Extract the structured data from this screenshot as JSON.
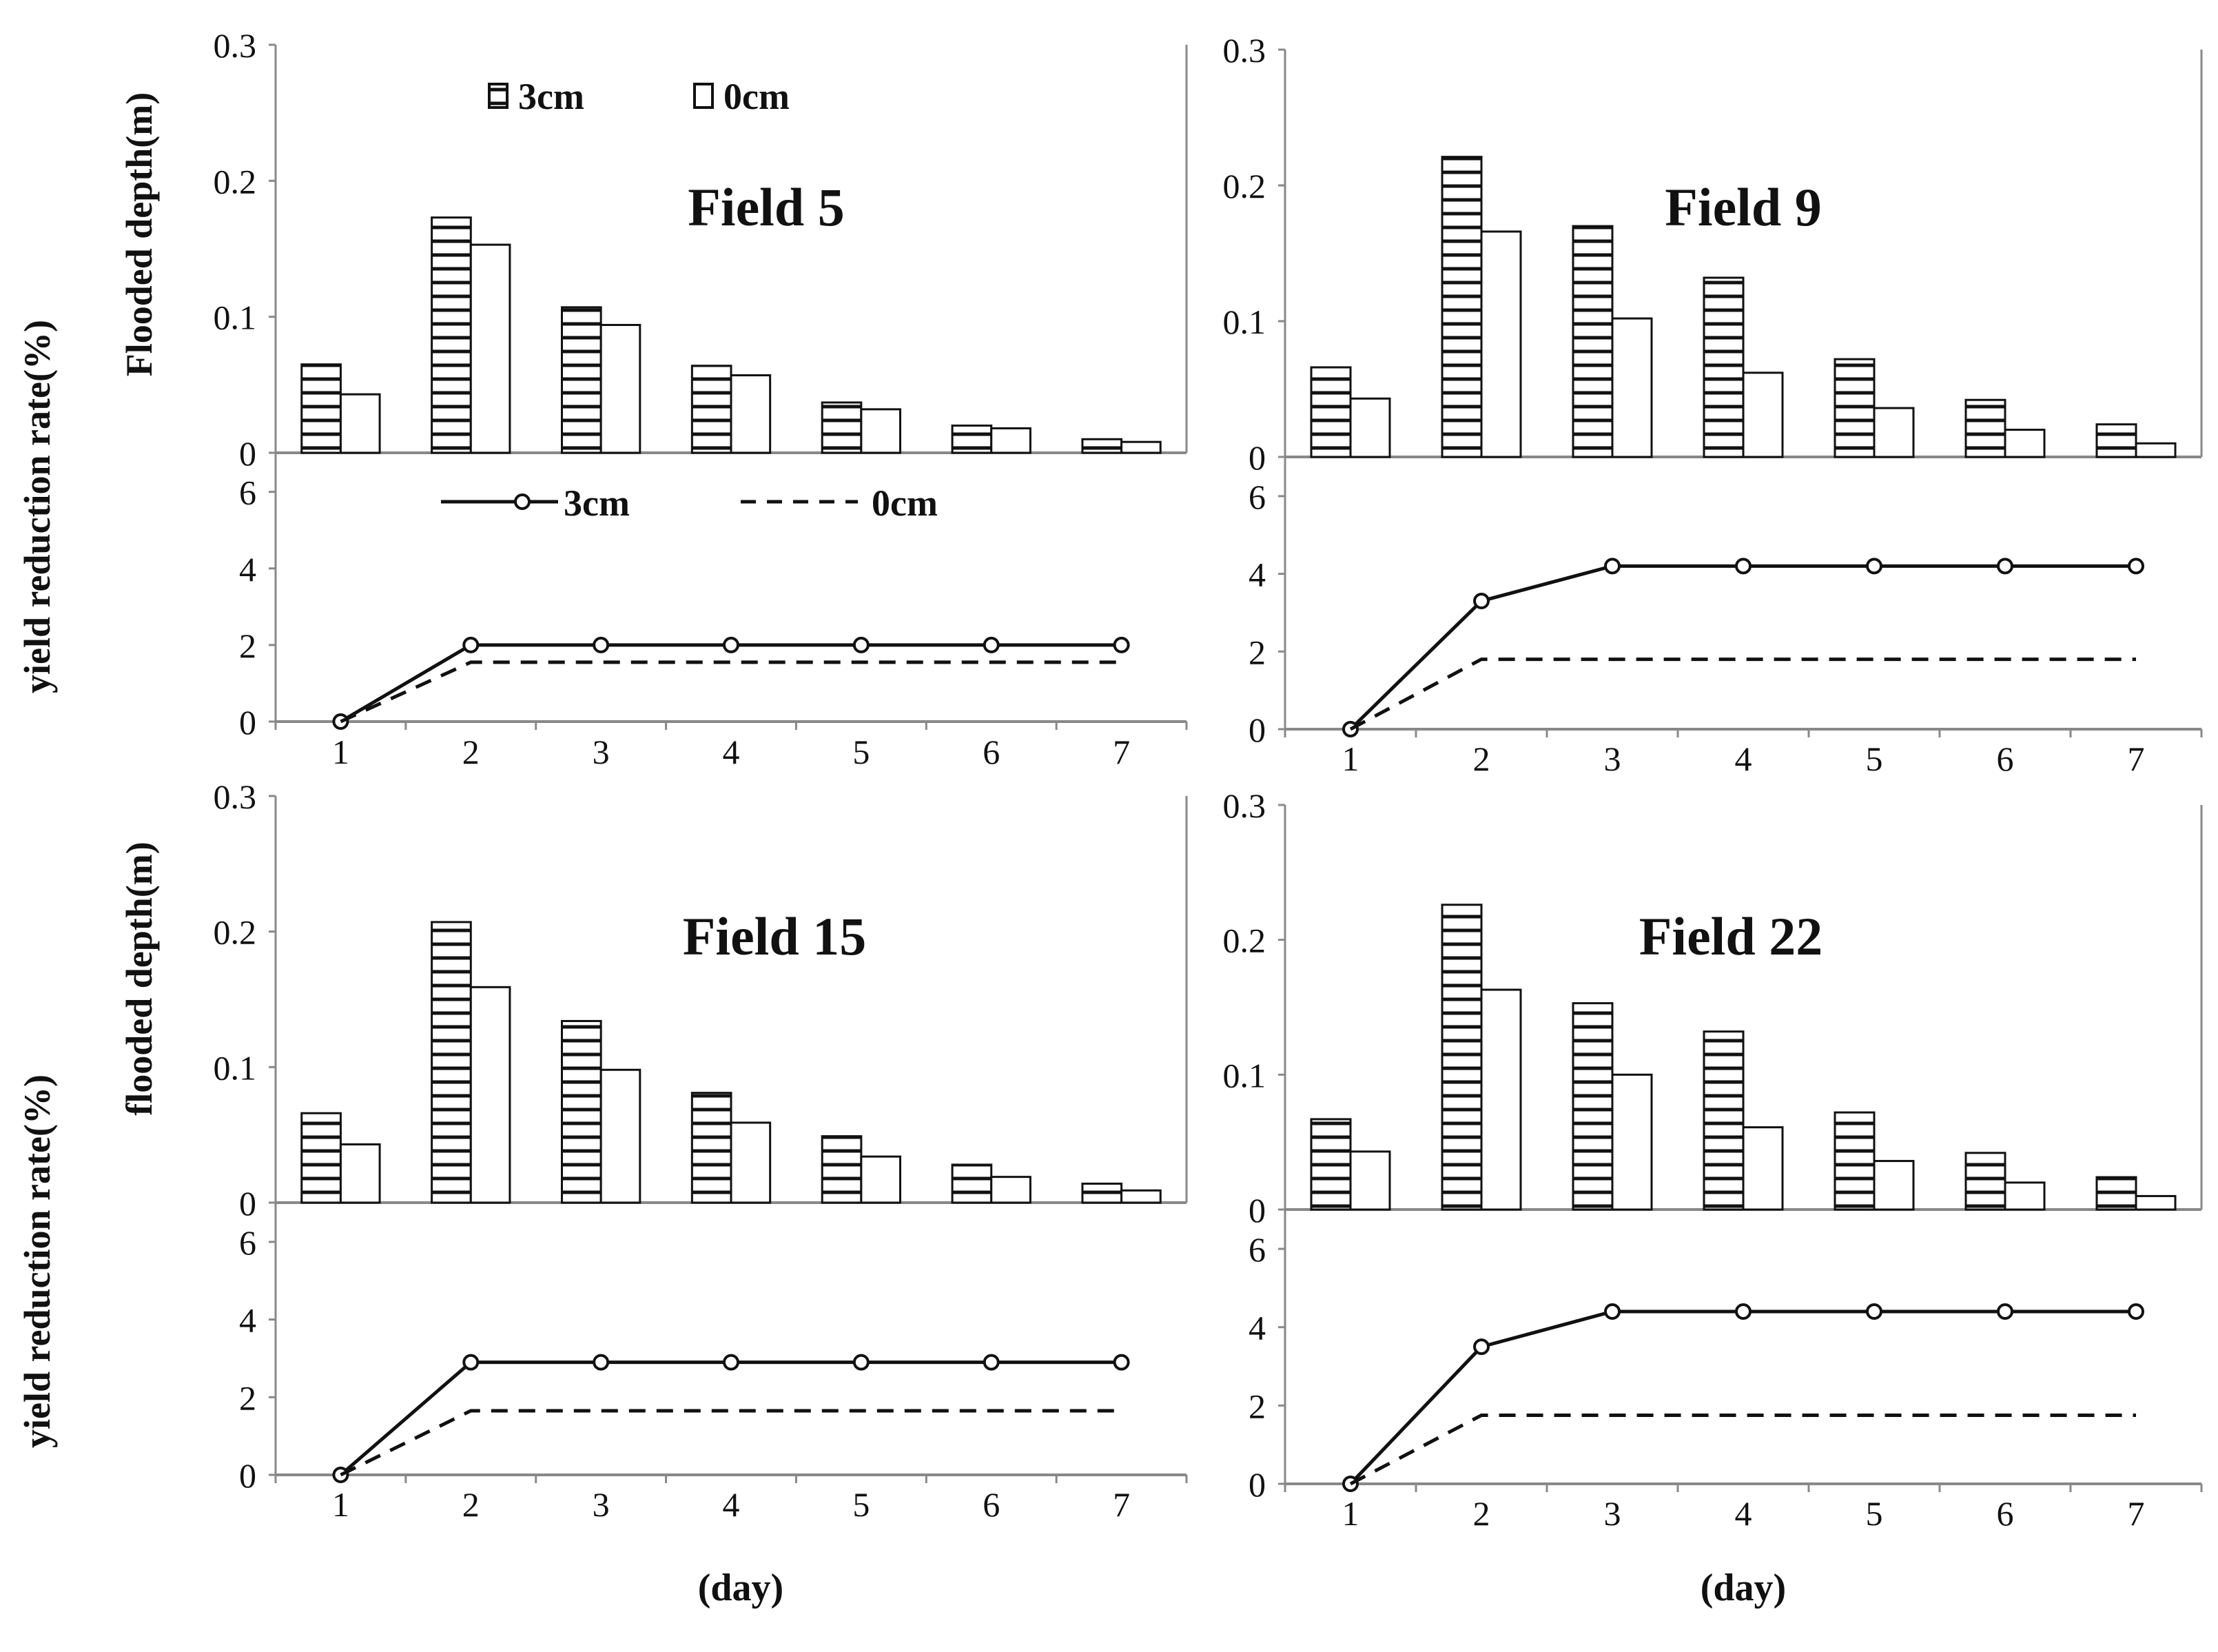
{
  "figure": {
    "y_labels": {
      "top_row_bar": "Flooded depth(m)",
      "bottom_row_bar": "flooded depth(m)",
      "line": "yield reduction rate(%)"
    },
    "x_label": "(day)"
  },
  "legend": {
    "bar_3cm": "3cm",
    "bar_0cm": "0cm",
    "line_3cm": "3cm",
    "line_0cm": "0cm"
  },
  "colors": {
    "axis": "#888888",
    "ink": "#111111",
    "bar_fill": "#ffffff"
  },
  "chart_data": [
    {
      "type": "bar",
      "title": "Field 5",
      "xlabel": "",
      "ylabel": "Flooded depth(m)",
      "categories": [
        "1",
        "2",
        "3",
        "4",
        "5",
        "6",
        "7"
      ],
      "ylim": [
        0,
        0.3
      ],
      "yticks": [
        "0",
        "0.1",
        "0.2",
        "0.3"
      ],
      "series": [
        {
          "name": "3cm",
          "pattern": "hatched",
          "values": [
            0.065,
            0.173,
            0.107,
            0.064,
            0.037,
            0.02,
            0.01
          ]
        },
        {
          "name": "0cm",
          "pattern": "empty",
          "values": [
            0.043,
            0.153,
            0.094,
            0.057,
            0.032,
            0.018,
            0.008
          ]
        }
      ]
    },
    {
      "type": "line",
      "title": "",
      "xlabel": "",
      "ylabel": "yield reduction rate(%)",
      "categories": [
        "1",
        "2",
        "3",
        "4",
        "5",
        "6",
        "7"
      ],
      "ylim": [
        0,
        6.3
      ],
      "yticks": [
        "0",
        "2",
        "4",
        "6"
      ],
      "series": [
        {
          "name": "3cm",
          "style": "solid-circle",
          "values": [
            0,
            2.0,
            2.0,
            2.0,
            2.0,
            2.0,
            2.0
          ]
        },
        {
          "name": "0cm",
          "style": "dashed",
          "values": [
            0,
            1.55,
            1.55,
            1.55,
            1.55,
            1.55,
            1.55
          ]
        }
      ]
    },
    {
      "type": "bar",
      "title": "Field 9",
      "xlabel": "",
      "ylabel": "",
      "categories": [
        "1",
        "2",
        "3",
        "4",
        "5",
        "6",
        "7"
      ],
      "ylim": [
        0,
        0.3
      ],
      "yticks": [
        "0",
        "0.1",
        "0.2",
        "0.3"
      ],
      "series": [
        {
          "name": "3cm",
          "pattern": "hatched",
          "values": [
            0.066,
            0.221,
            0.17,
            0.132,
            0.072,
            0.042,
            0.024
          ]
        },
        {
          "name": "0cm",
          "pattern": "empty",
          "values": [
            0.043,
            0.166,
            0.102,
            0.062,
            0.036,
            0.02,
            0.01
          ]
        }
      ]
    },
    {
      "type": "line",
      "title": "",
      "xlabel": "",
      "ylabel": "",
      "categories": [
        "1",
        "2",
        "3",
        "4",
        "5",
        "6",
        "7"
      ],
      "ylim": [
        0,
        6.3
      ],
      "yticks": [
        "0",
        "2",
        "4",
        "6"
      ],
      "series": [
        {
          "name": "3cm",
          "style": "solid-circle",
          "values": [
            0,
            3.3,
            4.2,
            4.2,
            4.2,
            4.2,
            4.2
          ]
        },
        {
          "name": "0cm",
          "style": "dashed",
          "values": [
            0,
            1.8,
            1.8,
            1.8,
            1.8,
            1.8,
            1.8
          ]
        }
      ]
    },
    {
      "type": "bar",
      "title": "Field 15",
      "xlabel": "",
      "ylabel": "flooded depth(m)",
      "categories": [
        "1",
        "2",
        "3",
        "4",
        "5",
        "6",
        "7"
      ],
      "ylim": [
        0,
        0.3
      ],
      "yticks": [
        "0",
        "0.1",
        "0.2",
        "0.3"
      ],
      "series": [
        {
          "name": "3cm",
          "pattern": "hatched",
          "values": [
            0.066,
            0.207,
            0.134,
            0.081,
            0.049,
            0.028,
            0.014
          ]
        },
        {
          "name": "0cm",
          "pattern": "empty",
          "values": [
            0.043,
            0.159,
            0.098,
            0.059,
            0.034,
            0.019,
            0.009
          ]
        }
      ]
    },
    {
      "type": "line",
      "title": "",
      "xlabel": "(day)",
      "ylabel": "yield reduction rate(%)",
      "categories": [
        "1",
        "2",
        "3",
        "4",
        "5",
        "6",
        "7"
      ],
      "ylim": [
        0,
        6.3
      ],
      "yticks": [
        "0",
        "2",
        "4",
        "6"
      ],
      "series": [
        {
          "name": "3cm",
          "style": "solid-circle",
          "values": [
            0,
            2.9,
            2.9,
            2.9,
            2.9,
            2.9,
            2.9
          ]
        },
        {
          "name": "0cm",
          "style": "dashed",
          "values": [
            0,
            1.65,
            1.65,
            1.65,
            1.65,
            1.65,
            1.65
          ]
        }
      ]
    },
    {
      "type": "bar",
      "title": "Field 22",
      "xlabel": "",
      "ylabel": "",
      "categories": [
        "1",
        "2",
        "3",
        "4",
        "5",
        "6",
        "7"
      ],
      "ylim": [
        0,
        0.3
      ],
      "yticks": [
        "0",
        "0.1",
        "0.2",
        "0.3"
      ],
      "series": [
        {
          "name": "3cm",
          "pattern": "hatched",
          "values": [
            0.067,
            0.226,
            0.153,
            0.132,
            0.072,
            0.042,
            0.024
          ]
        },
        {
          "name": "0cm",
          "pattern": "empty",
          "values": [
            0.043,
            0.163,
            0.1,
            0.061,
            0.036,
            0.02,
            0.01
          ]
        }
      ]
    },
    {
      "type": "line",
      "title": "",
      "xlabel": "(day)",
      "ylabel": "",
      "categories": [
        "1",
        "2",
        "3",
        "4",
        "5",
        "6",
        "7"
      ],
      "ylim": [
        0,
        6.3
      ],
      "yticks": [
        "0",
        "2",
        "4",
        "6"
      ],
      "series": [
        {
          "name": "3cm",
          "style": "solid-circle",
          "values": [
            0,
            3.5,
            4.4,
            4.4,
            4.4,
            4.4,
            4.4
          ]
        },
        {
          "name": "0cm",
          "style": "dashed",
          "values": [
            0,
            1.75,
            1.75,
            1.75,
            1.75,
            1.75,
            1.75
          ]
        }
      ]
    }
  ]
}
